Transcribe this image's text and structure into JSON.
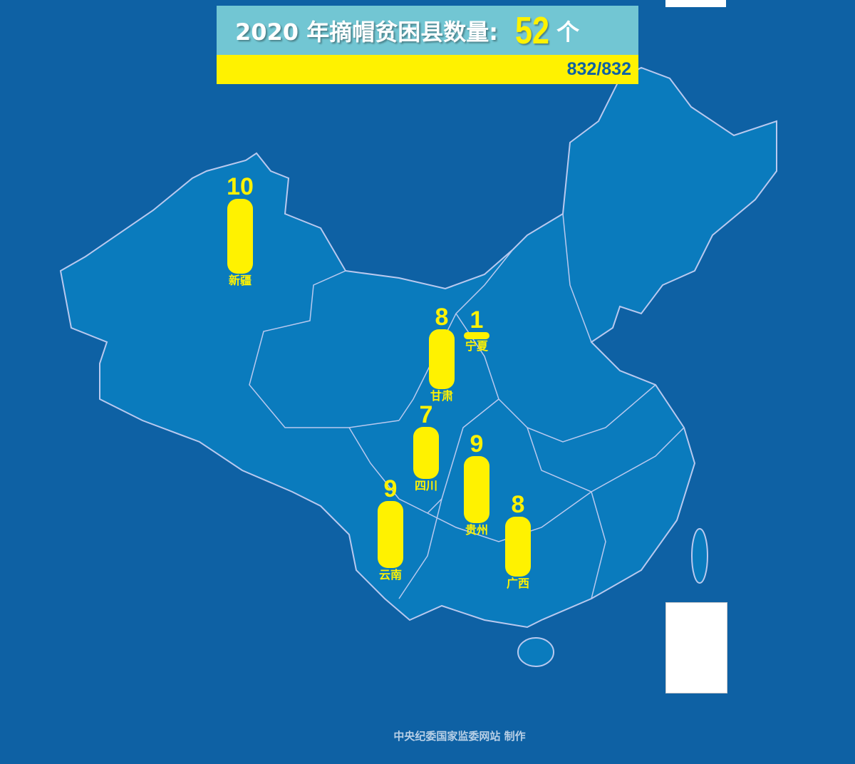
{
  "header": {
    "title": "2020 年摘帽贫困县数量:",
    "count": "52",
    "unit": "个",
    "progress": "832/832"
  },
  "provinces": [
    {
      "name": "新疆",
      "value": 10
    },
    {
      "name": "甘肃",
      "value": 8
    },
    {
      "name": "宁夏",
      "value": 1
    },
    {
      "name": "四川",
      "value": 7
    },
    {
      "name": "贵州",
      "value": 9
    },
    {
      "name": "云南",
      "value": 9
    },
    {
      "name": "广西",
      "value": 8
    }
  ],
  "colors": {
    "background": "#0e61a4",
    "land": "#0a7bbd",
    "accent": "#fff200",
    "header": "#72c6d3"
  },
  "footer": "中央纪委国家监委网站 制作"
}
